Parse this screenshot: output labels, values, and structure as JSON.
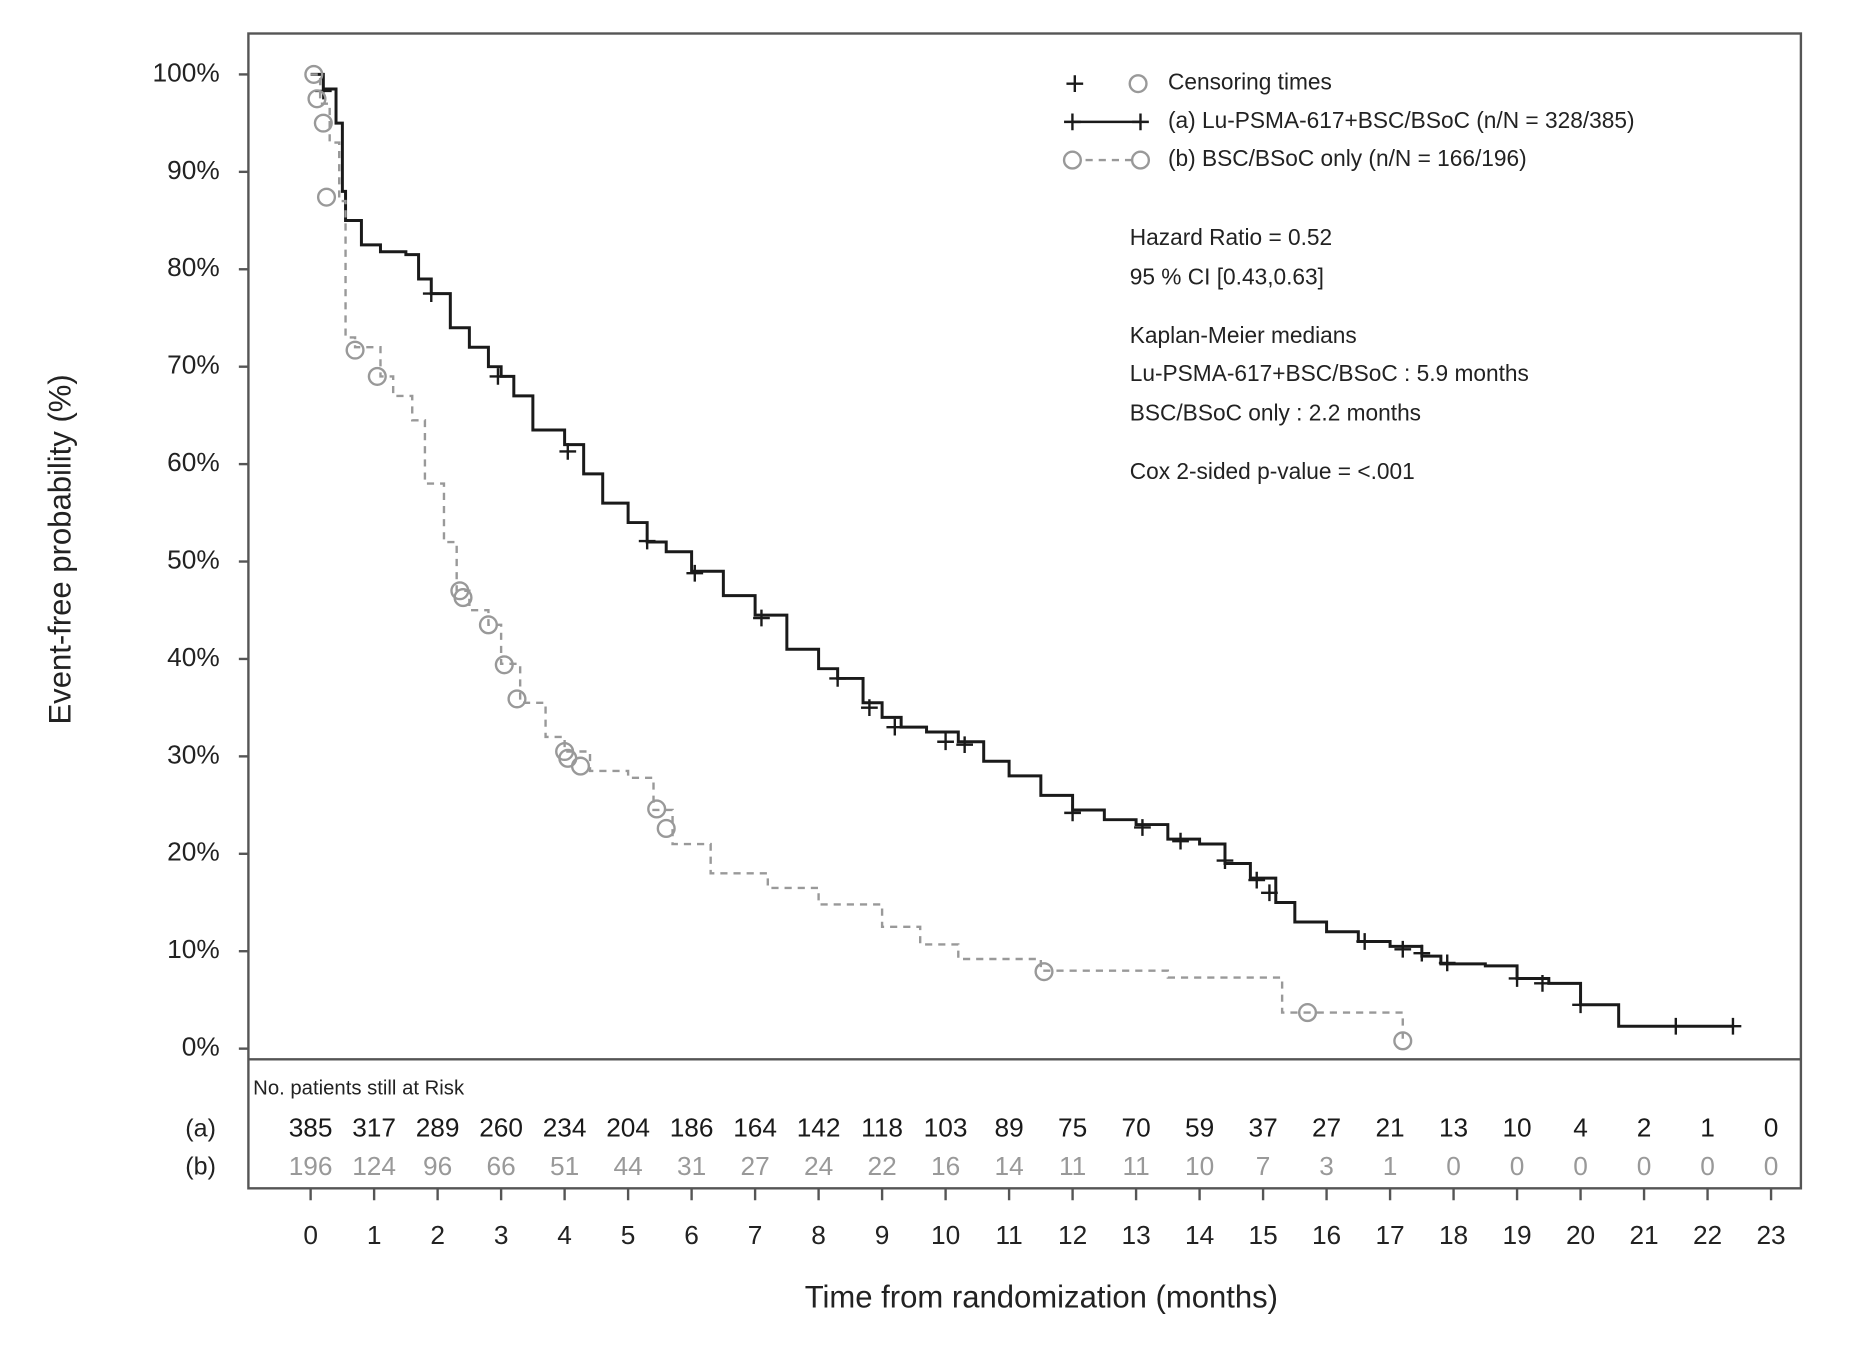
{
  "chart_data": {
    "type": "kaplan-meier",
    "xlabel": "Time from randomization (months)",
    "ylabel": "Event-free probability (%)",
    "xlim": [
      -0.98,
      23.47
    ],
    "ylim": [
      -1.1,
      104.2
    ],
    "xticks": [
      0,
      1,
      2,
      3,
      4,
      5,
      6,
      7,
      8,
      9,
      10,
      11,
      12,
      13,
      14,
      15,
      16,
      17,
      18,
      19,
      20,
      21,
      22,
      23
    ],
    "yticks": [
      {
        "value": 0,
        "label": "0%"
      },
      {
        "value": 10,
        "label": "10%"
      },
      {
        "value": 20,
        "label": "20%"
      },
      {
        "value": 30,
        "label": "30%"
      },
      {
        "value": 40,
        "label": "40%"
      },
      {
        "value": 50,
        "label": "50%"
      },
      {
        "value": 60,
        "label": "60%"
      },
      {
        "value": 70,
        "label": "70%"
      },
      {
        "value": 80,
        "label": "80%"
      },
      {
        "value": 90,
        "label": "90%"
      },
      {
        "value": 100,
        "label": "100%"
      }
    ],
    "censor_label": "Censoring times",
    "series": [
      {
        "name": "(a) Lu-PSMA-617+BSC/BSoC (n/N = 328/385)",
        "color": "#1a1a1a",
        "dashed": false,
        "marker": "plus",
        "x": [
          0,
          0.2,
          0.4,
          0.5,
          0.55,
          0.8,
          1.1,
          1.5,
          1.7,
          1.9,
          2.2,
          2.5,
          2.8,
          3.0,
          3.2,
          3.5,
          4.0,
          4.3,
          4.6,
          5.0,
          5.3,
          5.6,
          6.0,
          6.5,
          7.0,
          7.5,
          8.0,
          8.3,
          8.7,
          9.0,
          9.3,
          9.7,
          10.2,
          10.6,
          11.0,
          11.5,
          12.0,
          12.5,
          13.0,
          13.5,
          14.0,
          14.4,
          14.8,
          15.2,
          15.5,
          16.0,
          16.5,
          17.0,
          17.5,
          17.8,
          18.5,
          19.0,
          19.5,
          20.0,
          20.6,
          22.4
        ],
        "values": [
          100,
          98.5,
          95,
          88,
          85,
          82.5,
          81.8,
          81.5,
          79,
          77.5,
          74,
          72,
          70,
          69,
          67,
          63.5,
          62,
          59,
          56,
          54,
          52,
          51,
          49,
          46.5,
          44.5,
          41,
          39,
          38,
          35.5,
          34,
          33,
          32.5,
          31.5,
          29.5,
          28,
          26,
          24.5,
          23.5,
          23,
          21.5,
          21,
          19,
          17.5,
          15,
          13,
          12,
          11,
          10.5,
          9.5,
          8.7,
          8.5,
          7.2,
          6.7,
          4.5,
          2.3,
          2.3
        ],
        "censored": {
          "x": [
            0.2,
            1.9,
            2.95,
            4.05,
            5.3,
            6.05,
            7.1,
            8.3,
            8.8,
            9.2,
            10.0,
            10.3,
            12.0,
            13.1,
            13.7,
            14.4,
            14.9,
            15.1,
            16.6,
            17.2,
            17.5,
            17.9,
            19.0,
            19.4,
            20.0,
            21.5,
            22.4
          ],
          "values": [
            98.3,
            77.5,
            69,
            61.3,
            52.1,
            48.8,
            44.2,
            38,
            35,
            33,
            31.5,
            31.2,
            24.2,
            22.7,
            21.3,
            19.3,
            17.3,
            16,
            11,
            10.2,
            9.8,
            8.8,
            7.2,
            6.7,
            4.5,
            2.3,
            2.3
          ]
        }
      },
      {
        "name": "(b) BSC/BSoC only (n/N = 166/196)",
        "color": "#999999",
        "dashed": true,
        "marker": "circle",
        "x": [
          0,
          0.15,
          0.3,
          0.45,
          0.55,
          0.7,
          1.1,
          1.3,
          1.6,
          1.8,
          2.1,
          2.3,
          2.5,
          2.8,
          3.0,
          3.3,
          3.7,
          4.0,
          4.4,
          5.0,
          5.4,
          5.7,
          6.3,
          7.2,
          8.0,
          8.7,
          9.0,
          9.6,
          10.2,
          11.5,
          13.5,
          14.8,
          15.3,
          16.5,
          17.2
        ],
        "values": [
          100,
          97,
          93,
          87,
          73,
          72,
          69,
          67,
          64.5,
          58,
          52,
          47,
          45,
          43.5,
          39.5,
          35.5,
          32,
          30.5,
          28.5,
          27.8,
          24.5,
          21,
          18,
          16.5,
          14.8,
          14.8,
          12.5,
          10.7,
          9.2,
          8,
          7.3,
          7.3,
          3.7,
          3.7,
          0.8
        ],
        "censored": {
          "x": [
            0.05,
            0.1,
            0.2,
            0.25,
            0.7,
            1.05,
            2.35,
            2.4,
            2.8,
            3.05,
            3.25,
            4.0,
            4.05,
            4.25,
            5.45,
            5.6,
            11.55,
            15.7,
            17.2
          ],
          "values": [
            100,
            97.5,
            95,
            87.4,
            71.7,
            69,
            47,
            46.3,
            43.5,
            39.4,
            35.9,
            30.5,
            29.8,
            29,
            24.6,
            22.6,
            7.9,
            3.7,
            0.8
          ]
        }
      }
    ],
    "annotations": [
      "Hazard Ratio = 0.52",
      "95 % CI [0.43,0.63]",
      "Kaplan-Meier medians",
      "Lu-PSMA-617+BSC/BSoC : 5.9 months",
      "BSC/BSoC only : 2.2 months",
      "Cox 2-sided p-value = <.001"
    ],
    "risk_table": {
      "title": "No. patients still at Risk",
      "rows": [
        {
          "label": "(a)",
          "values": [
            385,
            317,
            289,
            260,
            234,
            204,
            186,
            164,
            142,
            118,
            103,
            89,
            75,
            70,
            59,
            37,
            27,
            21,
            13,
            10,
            4,
            2,
            1,
            0
          ]
        },
        {
          "label": "(b)",
          "values": [
            196,
            124,
            96,
            66,
            51,
            44,
            31,
            27,
            24,
            22,
            16,
            14,
            11,
            11,
            10,
            7,
            3,
            1,
            0,
            0,
            0,
            0,
            0,
            0
          ]
        }
      ]
    }
  }
}
